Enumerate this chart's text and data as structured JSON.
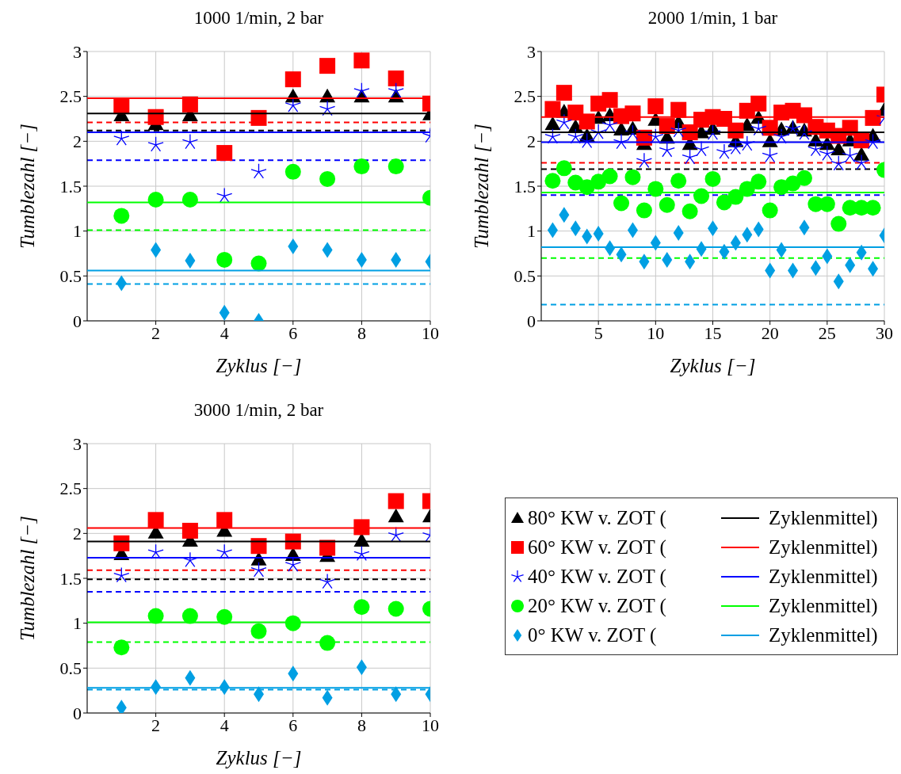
{
  "chart_data": [
    {
      "type": "scatter",
      "title": "1000 1/min, 2 bar",
      "xlabel": "Zyklus [−]",
      "ylabel": "Tumblezahl [−]",
      "x": [
        1,
        2,
        3,
        4,
        5,
        6,
        7,
        8,
        9,
        10
      ],
      "xlim": [
        0,
        10
      ],
      "xticks": [
        2,
        4,
        6,
        8,
        10
      ],
      "ylim": [
        0,
        3
      ],
      "yticks": [
        0,
        0.5,
        1,
        1.5,
        2,
        2.5,
        3
      ],
      "grid": true,
      "legend": false,
      "series": [
        {
          "color": "#000000",
          "marker": "triangle",
          "values": [
            2.29,
            2.19,
            2.29,
            null,
            null,
            2.5,
            2.5,
            2.5,
            2.5,
            2.3
          ]
        },
        {
          "color": "#ff0000",
          "marker": "square",
          "values": [
            2.39,
            2.27,
            2.41,
            1.87,
            2.26,
            2.69,
            2.84,
            2.9,
            2.7,
            2.42
          ]
        },
        {
          "color": "#0000ff",
          "marker": "cross",
          "values": [
            2.03,
            1.96,
            1.99,
            1.39,
            1.66,
            2.4,
            2.36,
            2.56,
            2.56,
            2.06
          ]
        },
        {
          "color": "#00ff00",
          "marker": "circle",
          "values": [
            1.17,
            1.35,
            1.35,
            0.68,
            0.64,
            1.66,
            1.58,
            1.72,
            1.72,
            1.37
          ]
        },
        {
          "color": "#009fe3",
          "marker": "diamond",
          "values": [
            0.42,
            0.79,
            0.67,
            0.09,
            0.0,
            0.83,
            0.79,
            0.68,
            0.68,
            0.66
          ]
        },
        {
          "type": "line",
          "color": "#000000",
          "line_style": "solid",
          "x": [
            0,
            10
          ],
          "values": [
            2.31,
            2.31
          ]
        },
        {
          "type": "line",
          "color": "#ff0000",
          "line_style": "solid",
          "x": [
            0,
            10
          ],
          "values": [
            2.48,
            2.48
          ]
        },
        {
          "type": "line",
          "color": "#0000ff",
          "line_style": "solid",
          "x": [
            0,
            10
          ],
          "values": [
            2.1,
            2.1
          ]
        },
        {
          "type": "line",
          "color": "#00ff00",
          "line_style": "solid",
          "x": [
            0,
            10
          ],
          "values": [
            1.32,
            1.32
          ]
        },
        {
          "type": "line",
          "color": "#009fe3",
          "line_style": "solid",
          "x": [
            0,
            10
          ],
          "values": [
            0.56,
            0.56
          ]
        }
      ],
      "ref_lines": [
        {
          "axis": "y",
          "value": 2.12,
          "color": "#000000",
          "line_style": "dashed"
        },
        {
          "axis": "y",
          "value": 2.21,
          "color": "#ff0000",
          "line_style": "dashed"
        },
        {
          "axis": "y",
          "value": 1.79,
          "color": "#0000ff",
          "line_style": "dashed"
        },
        {
          "axis": "y",
          "value": 1.01,
          "color": "#00ff00",
          "line_style": "dashed"
        },
        {
          "axis": "y",
          "value": 0.41,
          "color": "#009fe3",
          "line_style": "dashed"
        }
      ]
    },
    {
      "type": "scatter",
      "title": "2000 1/min, 1 bar",
      "xlabel": "Zyklus [−]",
      "ylabel": "Tumblezahl [−]",
      "x": [
        1,
        2,
        3,
        4,
        5,
        6,
        7,
        8,
        9,
        10,
        11,
        12,
        13,
        14,
        15,
        16,
        17,
        18,
        19,
        20,
        21,
        22,
        23,
        24,
        25,
        26,
        27,
        28,
        29,
        30
      ],
      "xlim": [
        0,
        30
      ],
      "xticks": [
        5,
        10,
        15,
        20,
        25,
        30
      ],
      "ylim": [
        0,
        3
      ],
      "yticks": [
        0,
        0.5,
        1,
        1.5,
        2,
        2.5,
        3
      ],
      "grid": true,
      "legend": false,
      "series": [
        {
          "color": "#000000",
          "marker": "triangle",
          "values": [
            2.19,
            2.33,
            2.16,
            2.06,
            2.26,
            2.29,
            2.13,
            2.14,
            1.97,
            2.24,
            2.04,
            2.21,
            1.97,
            2.1,
            2.14,
            null,
            2.0,
            2.18,
            2.26,
            2.0,
            2.13,
            2.15,
            2.12,
            2.01,
            1.97,
            1.91,
            2.01,
            1.85,
            2.06,
            2.35
          ]
        },
        {
          "color": "#ff0000",
          "marker": "square",
          "values": [
            2.36,
            2.54,
            2.32,
            2.22,
            2.42,
            2.46,
            2.28,
            2.31,
            2.04,
            2.39,
            2.17,
            2.35,
            2.1,
            2.24,
            2.27,
            2.25,
            2.12,
            2.34,
            2.42,
            2.15,
            2.32,
            2.34,
            2.29,
            2.16,
            2.12,
            2.06,
            2.15,
            2.01,
            2.26,
            2.52
          ]
        },
        {
          "color": "#0000ff",
          "marker": "cross",
          "values": [
            2.05,
            2.21,
            2.05,
            2.0,
            2.1,
            2.18,
            1.99,
            2.09,
            1.78,
            2.05,
            1.9,
            2.12,
            1.82,
            1.91,
            2.09,
            1.88,
            1.93,
            1.97,
            2.14,
            1.84,
            2.05,
            2.14,
            2.09,
            1.91,
            1.86,
            1.75,
            1.84,
            1.76,
            1.99,
            2.26
          ]
        },
        {
          "color": "#00ff00",
          "marker": "circle",
          "values": [
            1.56,
            1.7,
            1.54,
            1.49,
            1.55,
            1.61,
            1.31,
            1.6,
            1.23,
            1.47,
            1.29,
            1.56,
            1.22,
            1.39,
            1.58,
            1.32,
            1.38,
            1.47,
            1.55,
            1.23,
            1.49,
            1.53,
            1.59,
            1.3,
            1.3,
            1.08,
            1.26,
            1.26,
            1.26,
            1.68
          ]
        },
        {
          "color": "#009fe3",
          "marker": "diamond",
          "values": [
            1.01,
            1.18,
            1.03,
            0.94,
            0.97,
            0.81,
            0.74,
            1.01,
            0.66,
            0.87,
            0.68,
            0.98,
            0.66,
            0.8,
            1.03,
            0.77,
            0.87,
            0.96,
            1.02,
            0.56,
            0.79,
            0.56,
            1.04,
            0.59,
            0.72,
            0.44,
            0.62,
            0.76,
            0.58,
            0.95
          ]
        },
        {
          "type": "line",
          "color": "#000000",
          "line_style": "solid",
          "x": [
            0,
            30
          ],
          "values": [
            2.1,
            2.1
          ]
        },
        {
          "type": "line",
          "color": "#ff0000",
          "line_style": "solid",
          "x": [
            0,
            30
          ],
          "values": [
            2.27,
            2.27
          ]
        },
        {
          "type": "line",
          "color": "#0000ff",
          "line_style": "solid",
          "x": [
            0,
            30
          ],
          "values": [
            1.99,
            1.99
          ]
        },
        {
          "type": "line",
          "color": "#00ff00",
          "line_style": "solid",
          "x": [
            0,
            30
          ],
          "values": [
            1.43,
            1.43
          ]
        },
        {
          "type": "line",
          "color": "#009fe3",
          "line_style": "solid",
          "x": [
            0,
            30
          ],
          "values": [
            0.82,
            0.82
          ]
        }
      ],
      "ref_lines": [
        {
          "axis": "y",
          "value": 1.69,
          "color": "#000000",
          "line_style": "dashed"
        },
        {
          "axis": "y",
          "value": 1.76,
          "color": "#ff0000",
          "line_style": "dashed"
        },
        {
          "axis": "y",
          "value": 1.4,
          "color": "#0000ff",
          "line_style": "dashed"
        },
        {
          "axis": "y",
          "value": 0.7,
          "color": "#00ff00",
          "line_style": "dashed"
        },
        {
          "axis": "y",
          "value": 0.18,
          "color": "#009fe3",
          "line_style": "dashed"
        }
      ]
    },
    {
      "type": "scatter",
      "title": "3000 1/min, 2 bar",
      "xlabel": "Zyklus [−]",
      "ylabel": "Tumblezahl [−]",
      "x": [
        1,
        2,
        3,
        4,
        5,
        6,
        7,
        8,
        9,
        10
      ],
      "xlim": [
        0,
        10
      ],
      "xticks": [
        2,
        4,
        6,
        8,
        10
      ],
      "ylim": [
        0,
        3
      ],
      "yticks": [
        0,
        0.5,
        1,
        1.5,
        2,
        2.5,
        3
      ],
      "grid": true,
      "legend": "right",
      "series": [
        {
          "name": "80° KW v. ZOT (",
          "color": "#000000",
          "marker": "triangle",
          "values": [
            1.77,
            2.01,
            1.92,
            2.03,
            1.71,
            1.76,
            1.75,
            1.92,
            2.19,
            2.19
          ]
        },
        {
          "name": "60° KW v. ZOT (",
          "color": "#ff0000",
          "marker": "square",
          "values": [
            1.89,
            2.15,
            2.03,
            2.15,
            1.86,
            1.91,
            1.84,
            2.07,
            2.36,
            2.36
          ]
        },
        {
          "name": "40° KW v. ZOT (",
          "color": "#0000ff",
          "marker": "cross",
          "values": [
            1.53,
            1.79,
            1.7,
            1.79,
            1.59,
            1.65,
            1.46,
            1.77,
            1.98,
            1.98
          ]
        },
        {
          "name": "20° KW v. ZOT (",
          "color": "#00ff00",
          "marker": "circle",
          "values": [
            0.73,
            1.08,
            1.08,
            1.07,
            0.91,
            1.0,
            0.78,
            1.18,
            1.16,
            1.16
          ]
        },
        {
          "name": "0° KW v. ZOT (",
          "color": "#009fe3",
          "marker": "diamond",
          "values": [
            0.06,
            0.29,
            0.39,
            0.29,
            0.21,
            0.44,
            0.17,
            0.51,
            0.21,
            0.21
          ]
        },
        {
          "name": "Zyklenmittel)",
          "type": "line",
          "color": "#000000",
          "line_style": "solid",
          "x": [
            0,
            10
          ],
          "values": [
            1.91,
            1.91
          ]
        },
        {
          "name": "Zyklenmittel)",
          "type": "line",
          "color": "#ff0000",
          "line_style": "solid",
          "x": [
            0,
            10
          ],
          "values": [
            2.06,
            2.06
          ]
        },
        {
          "name": "Zyklenmittel)",
          "type": "line",
          "color": "#0000ff",
          "line_style": "solid",
          "x": [
            0,
            10
          ],
          "values": [
            1.73,
            1.73
          ]
        },
        {
          "name": "Zyklenmittel)",
          "type": "line",
          "color": "#00ff00",
          "line_style": "solid",
          "x": [
            0,
            10
          ],
          "values": [
            1.01,
            1.01
          ]
        },
        {
          "name": "Zyklenmittel)",
          "type": "line",
          "color": "#009fe3",
          "line_style": "solid",
          "x": [
            0,
            10
          ],
          "values": [
            0.28,
            0.28
          ]
        }
      ],
      "ref_lines": [
        {
          "axis": "y",
          "value": 1.49,
          "color": "#000000",
          "line_style": "dashed"
        },
        {
          "axis": "y",
          "value": 1.59,
          "color": "#ff0000",
          "line_style": "dashed"
        },
        {
          "axis": "y",
          "value": 1.35,
          "color": "#0000ff",
          "line_style": "dashed"
        },
        {
          "axis": "y",
          "value": 0.79,
          "color": "#00ff00",
          "line_style": "dashed"
        },
        {
          "axis": "y",
          "value": 0.26,
          "color": "#009fe3",
          "line_style": "dashed"
        }
      ]
    }
  ]
}
